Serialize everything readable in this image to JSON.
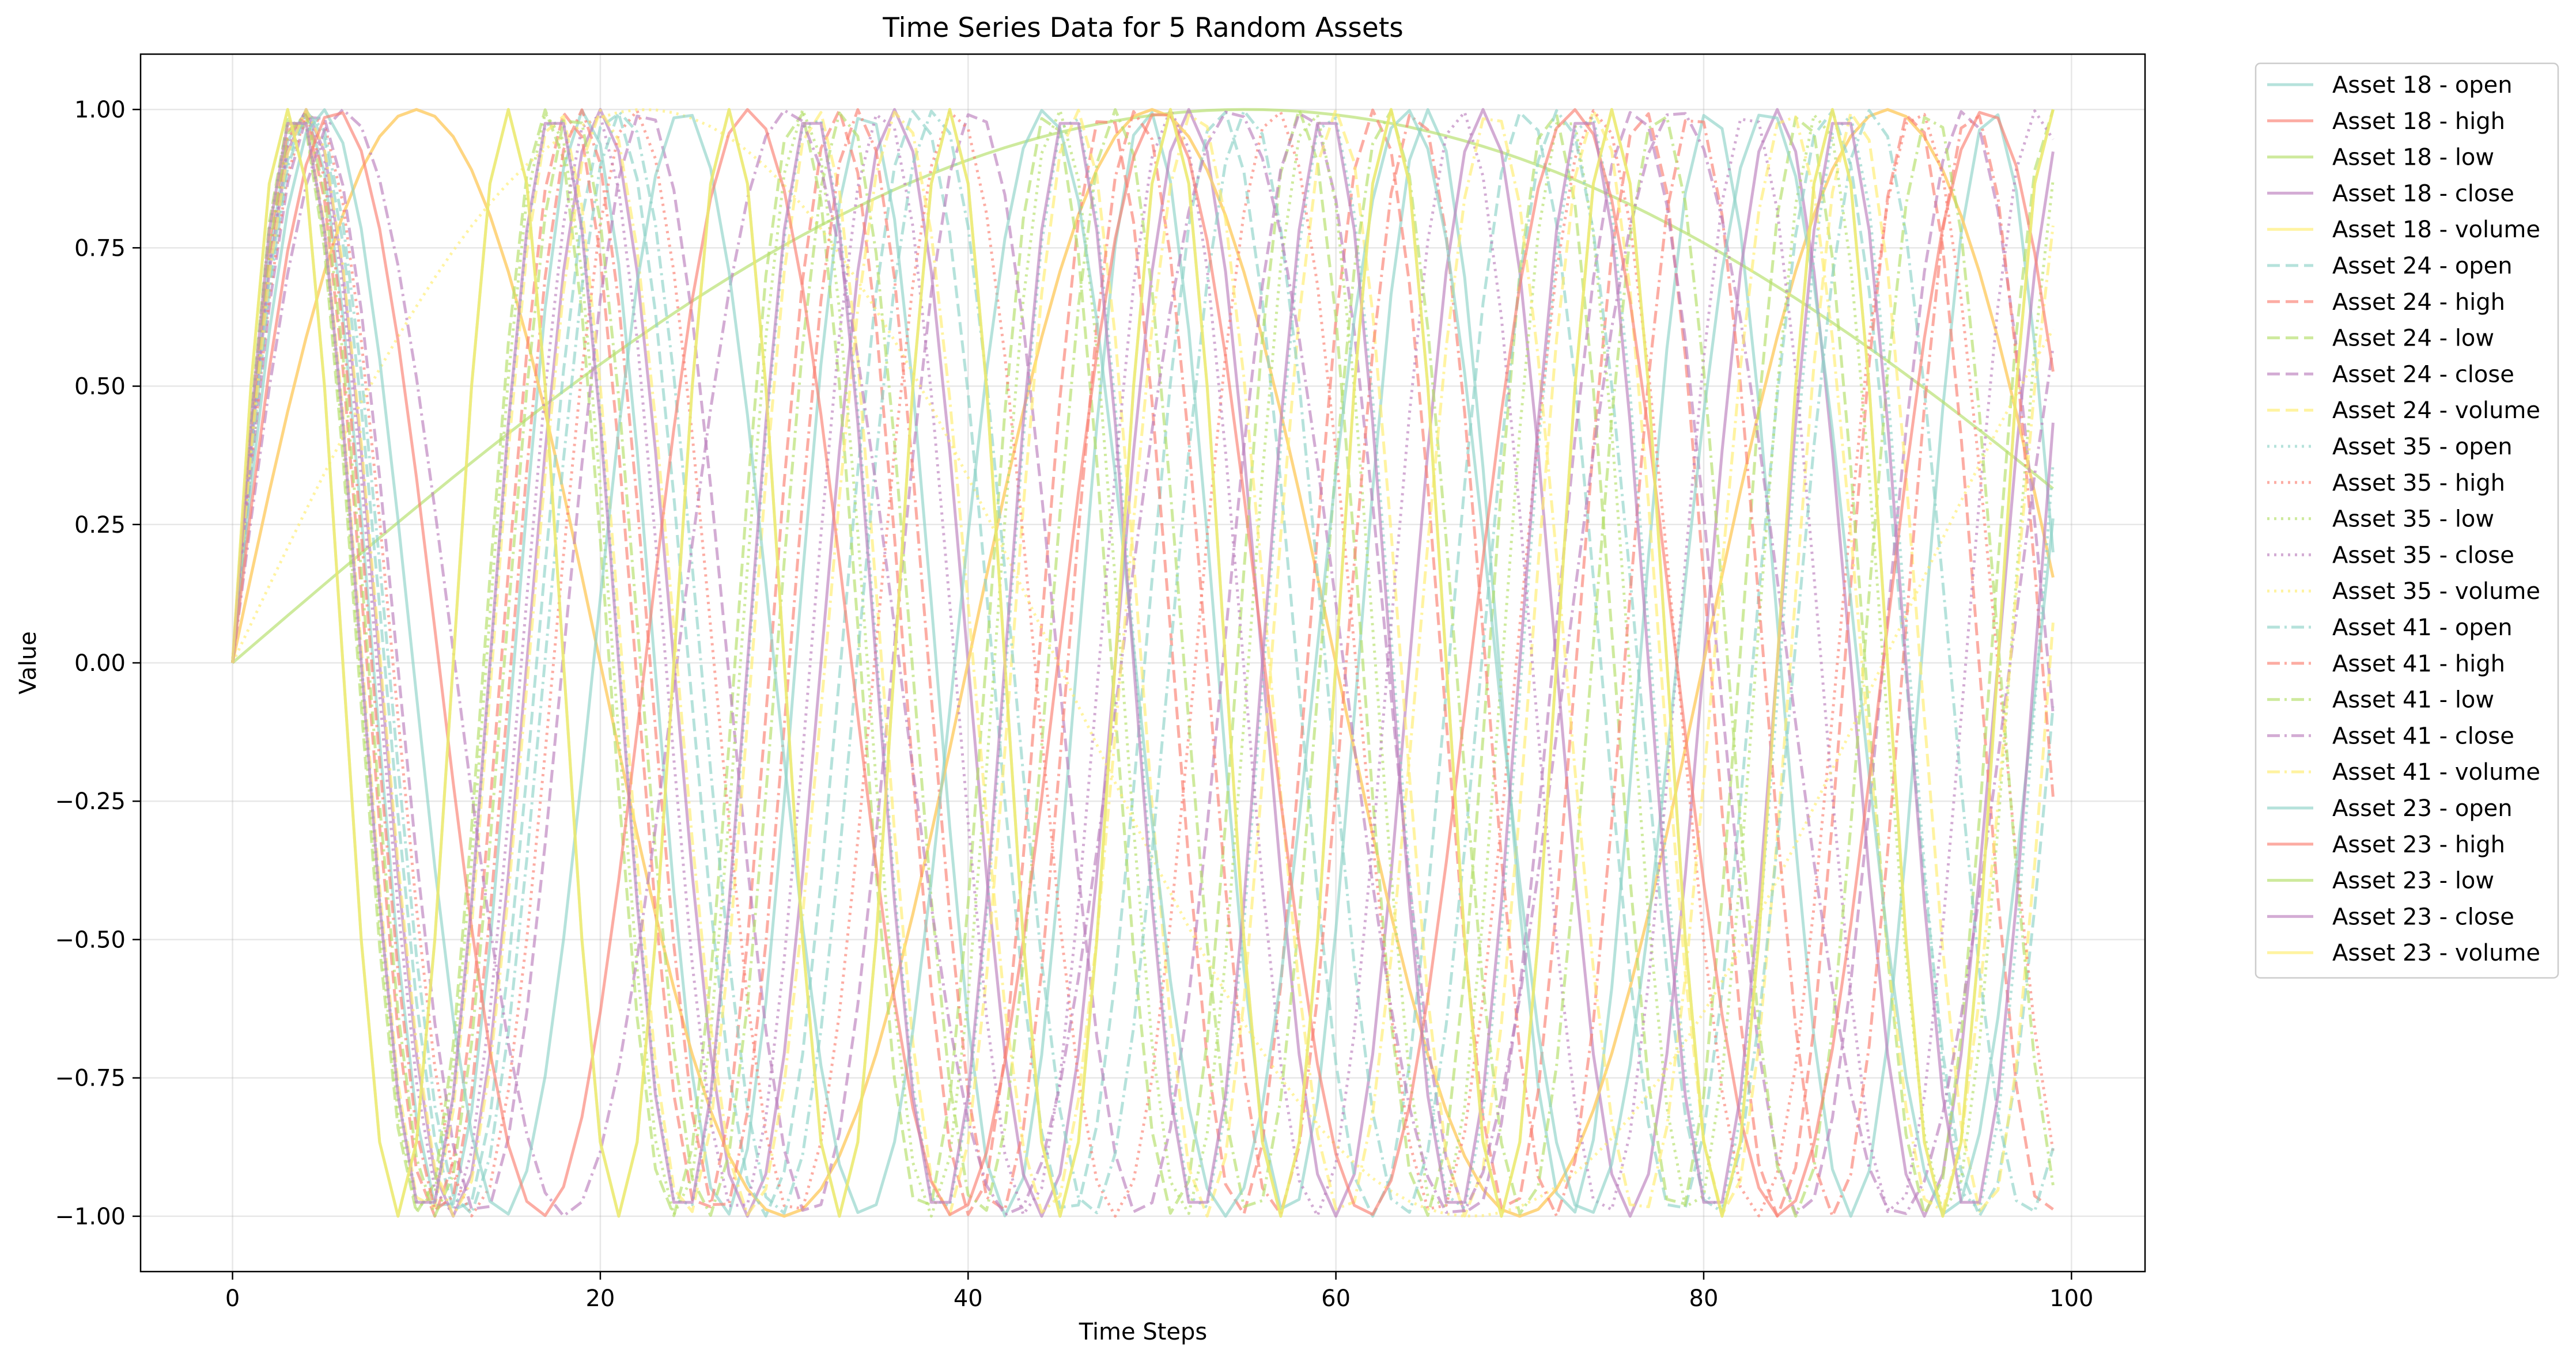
{
  "chart_data": {
    "type": "line",
    "title": "Time Series Data for 5 Random Assets",
    "xlabel": "Time Steps",
    "ylabel": "Value",
    "xlim": [
      -5,
      104
    ],
    "ylim": [
      -1.1,
      1.1
    ],
    "xticks": [
      0,
      20,
      40,
      60,
      80,
      100
    ],
    "xtick_labels": [
      "0",
      "20",
      "40",
      "60",
      "80",
      "100"
    ],
    "yticks": [
      -1.0,
      -0.75,
      -0.5,
      -0.25,
      0.0,
      0.25,
      0.5,
      0.75,
      1.0
    ],
    "ytick_labels": [
      "−1.00",
      "−0.75",
      "−0.50",
      "−0.25",
      "0.00",
      "0.25",
      "0.50",
      "0.75",
      "1.00"
    ],
    "grid": true,
    "legend_position": "outside-right",
    "x": [
      0,
      99
    ],
    "series": [
      {
        "name": "Asset 18 - open",
        "color": "#8dd3c7",
        "style": "solid",
        "freq": 0.4105
      },
      {
        "name": "Asset 18 - high",
        "color": "#fb8072",
        "style": "solid",
        "freq": 0.1571
      },
      {
        "name": "Asset 18 - low",
        "color": "#b3de69",
        "style": "solid",
        "freq": 0.0285
      },
      {
        "name": "Asset 18 - close",
        "color": "#bc80bd",
        "style": "solid",
        "freq": 0.3927
      },
      {
        "name": "Asset 18 - volume",
        "color": "#ffed6f",
        "style": "solid",
        "freq": 0.1571
      },
      {
        "name": "Asset 24 - open",
        "color": "#8dd3c7",
        "style": "dashed",
        "freq": 0.38
      },
      {
        "name": "Asset 24 - high",
        "color": "#fb8072",
        "style": "dashed",
        "freq": 0.43
      },
      {
        "name": "Asset 24 - low",
        "color": "#b3de69",
        "style": "dashed",
        "freq": 0.46
      },
      {
        "name": "Asset 24 - close",
        "color": "#bc80bd",
        "style": "dashed",
        "freq": 0.35
      },
      {
        "name": "Asset 24 - volume",
        "color": "#ffed6f",
        "style": "dashed",
        "freq": 0.445
      },
      {
        "name": "Asset 35 - open",
        "color": "#8dd3c7",
        "style": "dotted",
        "freq": 0.448
      },
      {
        "name": "Asset 35 - high",
        "color": "#fb8072",
        "style": "dotted",
        "freq": 0.36
      },
      {
        "name": "Asset 35 - low",
        "color": "#b3de69",
        "style": "dotted",
        "freq": 0.455
      },
      {
        "name": "Asset 35 - close",
        "color": "#bc80bd",
        "style": "dotted",
        "freq": 0.4
      },
      {
        "name": "Asset 35 - volume",
        "color": "#ffed6f",
        "style": "dotted",
        "freq": 0.07
      },
      {
        "name": "Asset 41 - open",
        "color": "#8dd3c7",
        "style": "dashdot",
        "freq": 0.37
      },
      {
        "name": "Asset 41 - high",
        "color": "#fb8072",
        "style": "dashdot",
        "freq": 0.415
      },
      {
        "name": "Asset 41 - low",
        "color": "#b3de69",
        "style": "dashdot",
        "freq": 0.425
      },
      {
        "name": "Asset 41 - close",
        "color": "#bc80bd",
        "style": "dashdot",
        "freq": 0.26
      },
      {
        "name": "Asset 41 - volume",
        "color": "#ffed6f",
        "style": "dashdot",
        "freq": 0.39
      },
      {
        "name": "Asset 23 - open",
        "color": "#8dd3c7",
        "style": "solid",
        "freq": 0.32
      },
      {
        "name": "Asset 23 - high",
        "color": "#fb8072",
        "style": "solid",
        "freq": 0.28
      },
      {
        "name": "Asset 23 - low",
        "color": "#b3de69",
        "style": "solid",
        "freq": 0.5236
      },
      {
        "name": "Asset 23 - close",
        "color": "#bc80bd",
        "style": "solid",
        "freq": 0.4488
      },
      {
        "name": "Asset 23 - volume",
        "color": "#ffed6f",
        "style": "solid",
        "freq": 0.5236
      }
    ]
  }
}
